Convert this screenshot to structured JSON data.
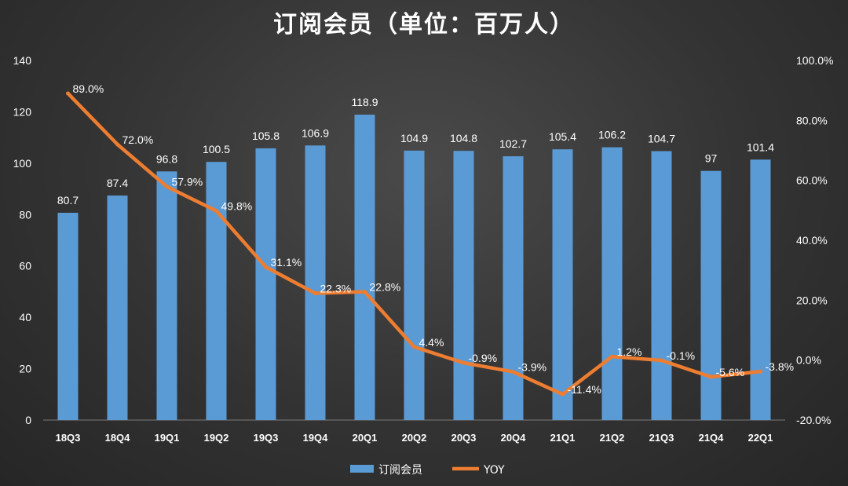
{
  "chart_data": {
    "type": "bar",
    "title": "订阅会员（单位：百万人）",
    "categories": [
      "18Q3",
      "18Q4",
      "19Q1",
      "19Q2",
      "19Q3",
      "19Q4",
      "20Q1",
      "20Q2",
      "20Q3",
      "20Q4",
      "21Q1",
      "21Q2",
      "21Q3",
      "21Q4",
      "22Q1"
    ],
    "series": [
      {
        "name": "订阅会员",
        "type": "bar",
        "axis": "left",
        "color": "#5b9bd5",
        "values": [
          80.7,
          87.4,
          96.8,
          100.5,
          105.8,
          106.9,
          118.9,
          104.9,
          104.8,
          102.7,
          105.4,
          106.2,
          104.7,
          97,
          101.4
        ],
        "labels": [
          "80.7",
          "87.4",
          "96.8",
          "100.5",
          "105.8",
          "106.9",
          "118.9",
          "104.9",
          "104.8",
          "102.7",
          "105.4",
          "106.2",
          "104.7",
          "97",
          "101.4"
        ]
      },
      {
        "name": "YOY",
        "type": "line",
        "axis": "right",
        "color": "#ed7d31",
        "values": [
          89.0,
          72.0,
          57.9,
          49.8,
          31.1,
          22.3,
          22.8,
          4.4,
          -0.9,
          -3.9,
          -11.4,
          1.2,
          -0.1,
          -5.6,
          -3.8
        ],
        "labels": [
          "89.0%",
          "72.0%",
          "57.9%",
          "49.8%",
          "31.1%",
          "22.3%",
          "22.8%",
          "4.4%",
          "-0.9%",
          "-3.9%",
          "-11.4%",
          "1.2%",
          "-0.1%",
          "-5.6%",
          "-3.8%"
        ]
      }
    ],
    "y_left": {
      "range": [
        0,
        140
      ],
      "ticks": [
        0,
        20,
        40,
        60,
        80,
        100,
        120,
        140
      ],
      "tick_labels": [
        "0",
        "20",
        "40",
        "60",
        "80",
        "100",
        "120",
        "140"
      ]
    },
    "y_right": {
      "range": [
        -20,
        100
      ],
      "ticks": [
        -20,
        0,
        20,
        40,
        60,
        80,
        100
      ],
      "tick_labels": [
        "-20.0%",
        "0.0%",
        "20.0%",
        "40.0%",
        "60.0%",
        "80.0%",
        "100.0%"
      ]
    },
    "grid": false,
    "legend": {
      "position": "bottom",
      "items": [
        "订阅会员",
        "YOY"
      ]
    }
  }
}
